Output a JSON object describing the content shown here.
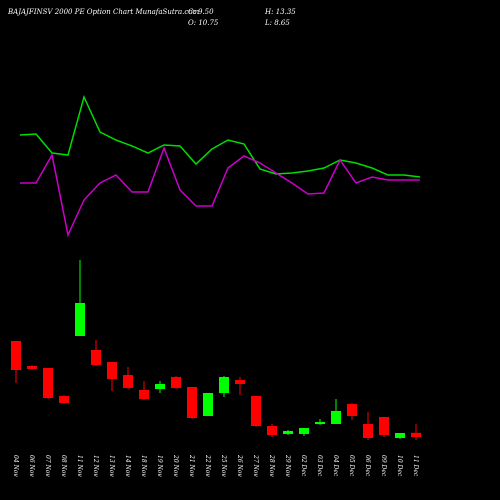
{
  "chart_data": {
    "type": "candlestick",
    "title": "BAJAJFINSV 2000 PE Option Chart MunafaSutra.com",
    "ohlc_labels": {
      "close": "C: 9.50",
      "high": "H: 13.35",
      "open": "O: 10.75",
      "low": "L: 8.65"
    },
    "categories": [
      "04 Nov",
      "06 Nov",
      "07 Nov",
      "08 Nov",
      "11 Nov",
      "12 Nov",
      "13 Nov",
      "14 Nov",
      "18 Nov",
      "19 Nov",
      "20 Nov",
      "21 Nov",
      "22 Nov",
      "25 Nov",
      "26 Nov",
      "27 Nov",
      "28 Nov",
      "29 Nov",
      "02 Dec",
      "03 Dec",
      "04 Dec",
      "05 Dec",
      "06 Dec",
      "09 Dec",
      "10 Dec",
      "11 Dec"
    ],
    "open": [
      38.3,
      30.8,
      30.2,
      21.8,
      39.8,
      35.6,
      32.0,
      28.1,
      23.6,
      23.9,
      27.5,
      24.5,
      15.8,
      22.7,
      26.6,
      21.8,
      12.8,
      10.4,
      10.4,
      13.4,
      13.4,
      19.4,
      13.4,
      15.5,
      9.2,
      10.75
    ],
    "high": [
      38.3,
      31.1,
      30.2,
      22.1,
      62.6,
      38.6,
      32.0,
      30.5,
      26.3,
      26.3,
      27.8,
      24.5,
      22.7,
      27.8,
      27.5,
      21.8,
      13.4,
      11.6,
      12.2,
      14.9,
      20.9,
      19.7,
      17.0,
      15.5,
      10.7,
      13.35
    ],
    "low": [
      25.7,
      29.6,
      20.9,
      19.4,
      39.8,
      30.8,
      23.3,
      23.9,
      20.6,
      22.7,
      23.9,
      14.9,
      15.8,
      21.5,
      22.1,
      12.5,
      9.5,
      10.1,
      9.8,
      13.1,
      13.4,
      14.6,
      8.6,
      9.5,
      8.9,
      8.65
    ],
    "close": [
      29.6,
      29.9,
      21.2,
      19.7,
      49.7,
      31.1,
      26.9,
      24.2,
      20.9,
      25.4,
      24.2,
      15.2,
      22.7,
      27.5,
      25.4,
      12.8,
      10.1,
      11.3,
      12.2,
      14.0,
      17.3,
      15.8,
      9.2,
      10.1,
      10.7,
      9.5
    ],
    "up_color": "#00ff00",
    "down_color": "#ff0000",
    "lines": [
      {
        "color": "#00dd00",
        "values": [
          165,
          166,
          147,
          145,
          203,
          168,
          160,
          154,
          147,
          155,
          154,
          136,
          151,
          160,
          156,
          131,
          126,
          127,
          129,
          132,
          140,
          137,
          132,
          125,
          125,
          123
        ]
      },
      {
        "color": "#cc00cc",
        "values": [
          117,
          117,
          145,
          65,
          100,
          117,
          125,
          108,
          108,
          152,
          110,
          94,
          94,
          132,
          144,
          137,
          127,
          117,
          106,
          107,
          140,
          117,
          123,
          120,
          120,
          120
        ]
      }
    ]
  }
}
